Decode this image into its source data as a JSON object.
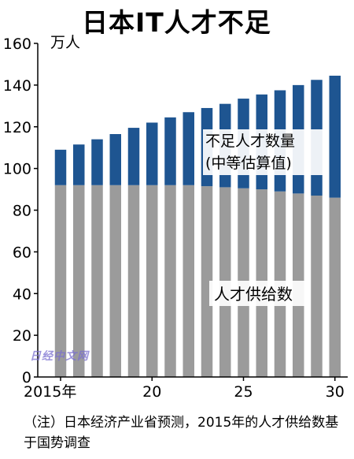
{
  "title": "日本IT人才不足",
  "note": "（注）日本经济产业省预测，2015年的人才供给数基于国势调查",
  "watermark": "日经中文网",
  "chart_data": {
    "type": "bar",
    "stacked": true,
    "unit_label": "万人",
    "categories": [
      "2015年",
      "2016",
      "2017",
      "2018",
      "2019",
      "2020",
      "2021",
      "2022",
      "2023",
      "2024",
      "2025",
      "2026",
      "2027",
      "2028",
      "2029",
      "2030"
    ],
    "x_tick_labels": [
      "2015年",
      "",
      "",
      "",
      "",
      "20",
      "",
      "",
      "",
      "",
      "25",
      "",
      "",
      "",
      "",
      "30"
    ],
    "series": [
      {
        "name": "人才供给数",
        "color": "#9b9b9b",
        "values": [
          92,
          92,
          92,
          92,
          92,
          92,
          92,
          92,
          91.5,
          91,
          90.5,
          90,
          89,
          88,
          87,
          86
        ]
      },
      {
        "name": "不足人才数量（中等估算值）",
        "color": "#1e5591",
        "values": [
          17,
          19.5,
          22,
          24.5,
          27.5,
          30,
          32.5,
          35,
          37.5,
          40,
          43,
          45.5,
          48.5,
          52,
          55.5,
          58.5
        ]
      }
    ],
    "annotations": {
      "shortage_line1": "不足人才数量",
      "shortage_line2": "(中等估算值)",
      "supply": "人才供给数"
    },
    "ylim": [
      0,
      160
    ],
    "yticks": [
      0,
      20,
      40,
      60,
      80,
      100,
      120,
      140,
      160
    ]
  }
}
